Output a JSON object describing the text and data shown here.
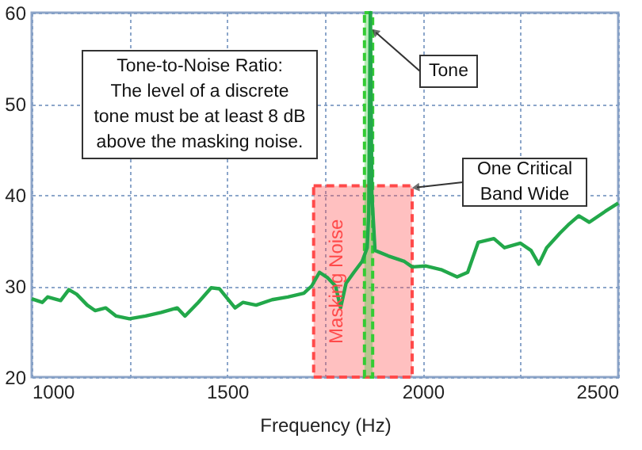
{
  "chart_data": {
    "type": "line",
    "xlabel": "Frequency (Hz)",
    "xlim": [
      1000,
      2500
    ],
    "xticks": [
      1000,
      {
        "value": 1250,
        "label": null
      },
      1500,
      {
        "value": 1750,
        "label": null
      },
      2000,
      {
        "value": 2250,
        "label": null
      },
      2500
    ],
    "ylim": [
      20,
      60
    ],
    "yticks": [
      20,
      30,
      40,
      50,
      60
    ],
    "grid": true,
    "marker": "none",
    "line_style": "solid",
    "series": [
      {
        "color": "#22a84a",
        "x": [
          1000,
          1027,
          1041,
          1074,
          1095,
          1115,
          1142,
          1162,
          1189,
          1216,
          1250,
          1291,
          1331,
          1372,
          1392,
          1426,
          1459,
          1480,
          1520,
          1540,
          1574,
          1615,
          1655,
          1696,
          1716,
          1736,
          1757,
          1777,
          1790,
          1804,
          1824,
          1845,
          1858,
          1862,
          1866,
          1870,
          1878,
          1912,
          1953,
          1973,
          2007,
          2047,
          2088,
          2115,
          2142,
          2182,
          2209,
          2250,
          2277,
          2297,
          2317,
          2351,
          2372,
          2399,
          2426,
          2467,
          2500
        ],
        "values": [
          28.6,
          28.2,
          28.8,
          28.4,
          29.6,
          29.1,
          27.9,
          27.3,
          27.6,
          26.7,
          26.4,
          26.7,
          27.1,
          27.6,
          26.7,
          28.2,
          29.8,
          29.7,
          27.6,
          28.2,
          27.9,
          28.5,
          28.8,
          29.2,
          30,
          31.5,
          30.9,
          30,
          27.6,
          30.3,
          31.5,
          32.7,
          34.2,
          38,
          60,
          40,
          33.9,
          33.3,
          32.7,
          32.1,
          32.2,
          31.8,
          31,
          31.5,
          34.8,
          35.2,
          34.2,
          34.7,
          33.9,
          32.4,
          34.2,
          35.8,
          36.7,
          37.7,
          37,
          38.2,
          39.1
        ]
      }
    ],
    "bands": [
      {
        "axis": "x",
        "from": 1721,
        "to": 1973,
        "label": "Masking Noise",
        "color": "#ff4a4a"
      },
      {
        "axis": "x",
        "from": 1851,
        "to": 1872,
        "color": "#33cc33"
      }
    ],
    "annotations": [
      "Tone-to-Noise Ratio:\nThe level of a discrete\ntone must be at least 8 dB\nabove the masking noise.",
      {
        "text": "Tone",
        "x": 1868,
        "y": 58
      },
      {
        "text": "One Critical Band Wide",
        "x": 1973,
        "y": 41
      }
    ]
  }
}
